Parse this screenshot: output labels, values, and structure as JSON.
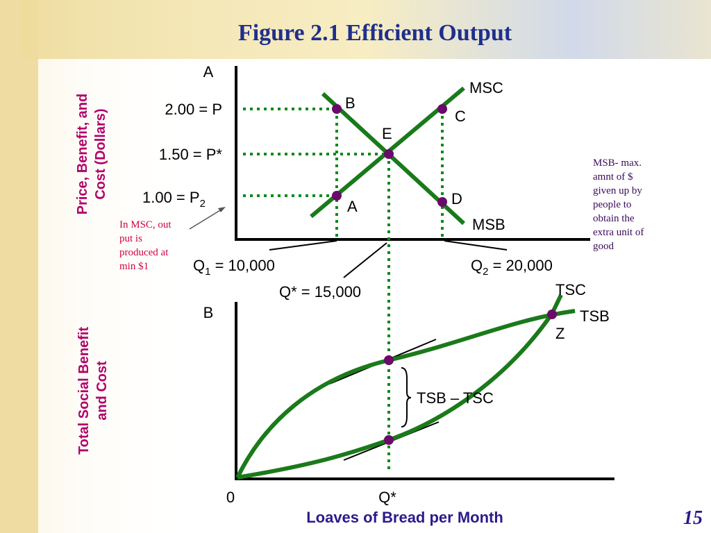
{
  "header": {
    "title": "Figure 2.1 Efficient Output"
  },
  "panel_a": {
    "label": "A",
    "y_axis_title": [
      "Price, Benefit, and",
      "Cost (Dollars)"
    ],
    "price_labels": [
      {
        "text": "2.00 = P"
      },
      {
        "text": "1.50 = P*"
      },
      {
        "text": "1.00 = P",
        "sub": "2"
      }
    ],
    "curves": {
      "msc": "MSC",
      "msb": "MSB"
    },
    "points": {
      "b": "B",
      "c": "C",
      "e": "E",
      "a": "A",
      "d": "D"
    },
    "quantities": {
      "q1": {
        "text": "Q",
        "sub": "1",
        "rest": " = 10,000"
      },
      "q2": {
        "text": "Q",
        "sub": "2",
        "rest": " = 20,000"
      },
      "qstar": "Q* = 15,000"
    }
  },
  "panel_b": {
    "label": "B",
    "y_axis_title": [
      "Total Social Benefit",
      "and Cost"
    ],
    "curves": {
      "tsc": "TSC",
      "tsb": "TSB"
    },
    "point_z": "Z",
    "difference": "TSB – TSC",
    "origin": "0",
    "qstar": "Q*",
    "x_axis_title": "Loaves of Bread per Month"
  },
  "notes": {
    "left": [
      "In MSC, out",
      "put is",
      "produced at",
      "min $1"
    ],
    "right": [
      "MSB- max.",
      "amnt of $",
      "given up by",
      "people to",
      "obtain the",
      "extra unit of",
      "good"
    ]
  },
  "footer": {
    "page": "15"
  }
}
